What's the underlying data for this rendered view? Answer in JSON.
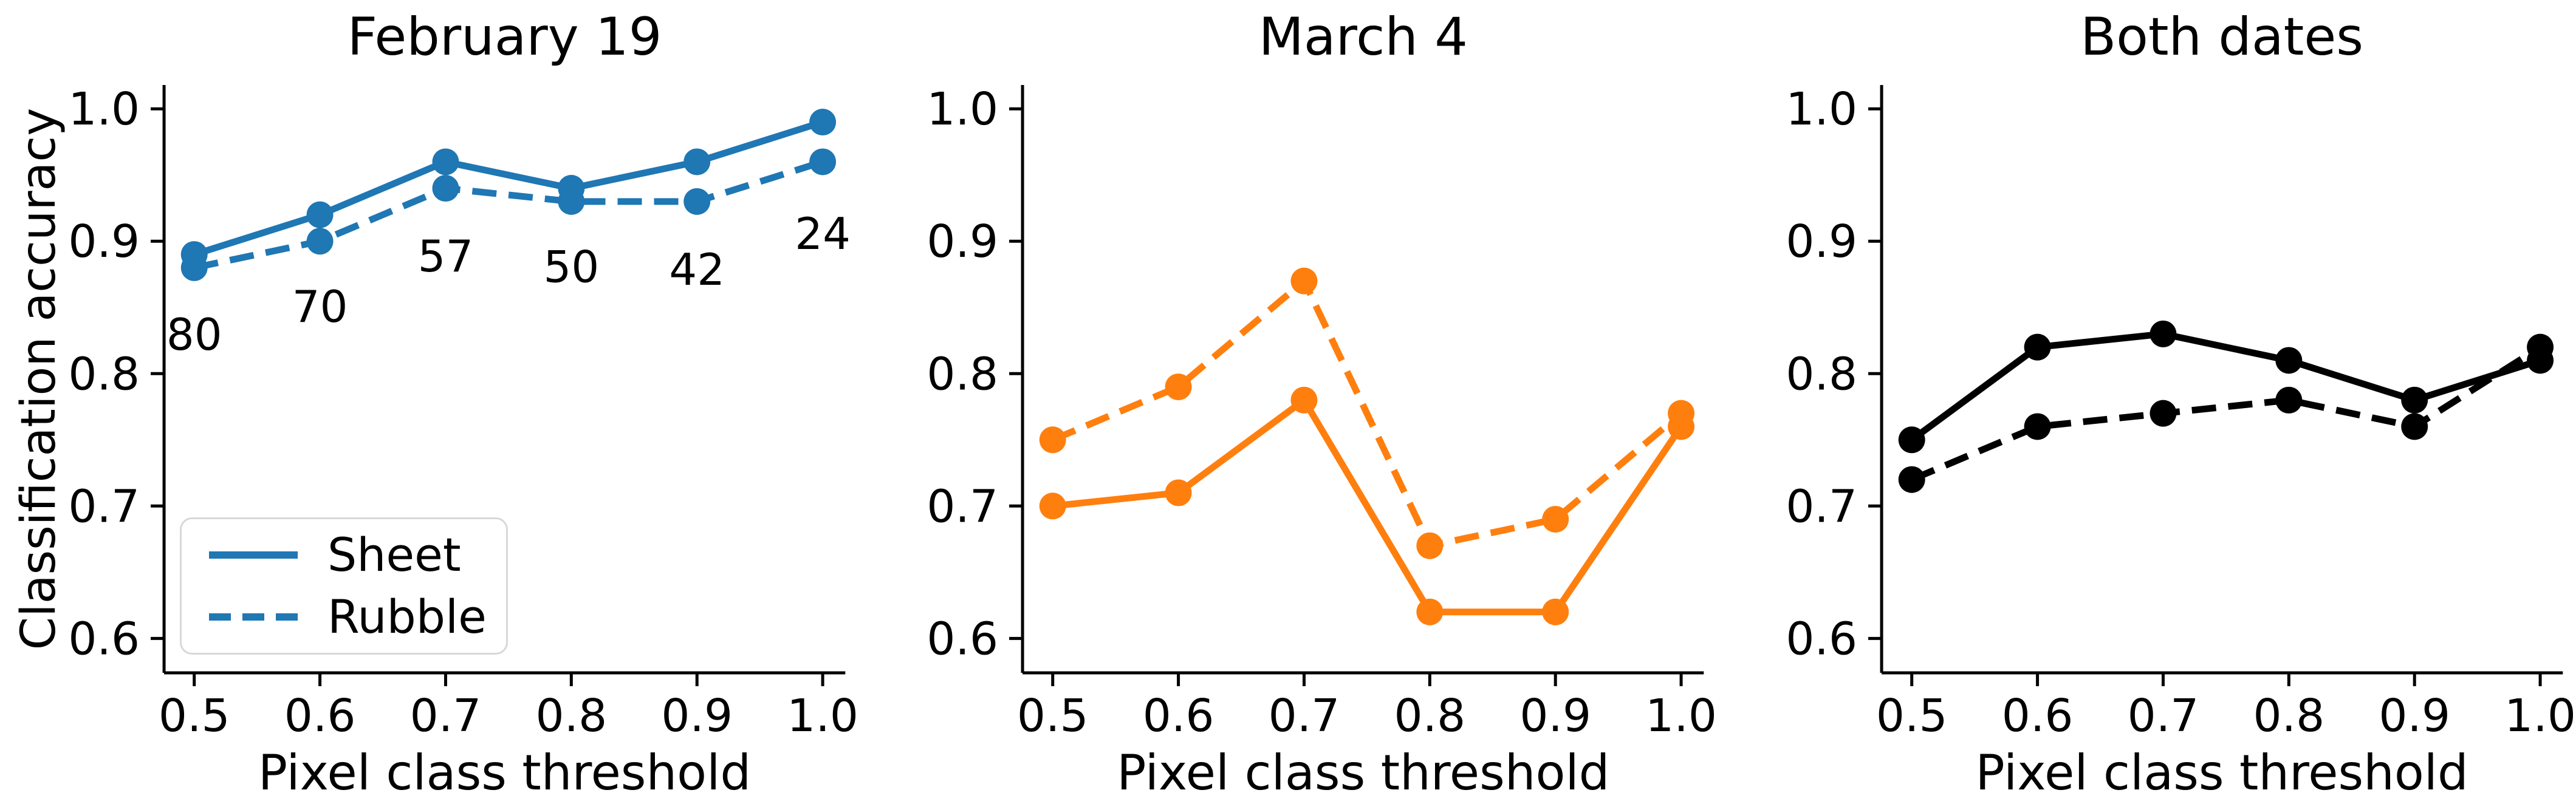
{
  "figure": {
    "ylabel": "Classification accuracy",
    "xlabel": "Pixel class threshold",
    "background_color": "#ffffff",
    "axis_color": "#000000"
  },
  "legend": {
    "position": "lower-left-of-first-panel",
    "items": [
      {
        "label": "Sheet",
        "style": "solid"
      },
      {
        "label": "Rubble",
        "style": "dashed"
      }
    ]
  },
  "chart_data": [
    {
      "type": "line",
      "title": "February 19",
      "xlabel": "Pixel class threshold",
      "ylabel": "Classification accuracy",
      "color": "#1f77b4",
      "grid": false,
      "x": [
        0.5,
        0.6,
        0.7,
        0.8,
        0.9,
        1.0
      ],
      "x_ticklabels": [
        "0.5",
        "0.6",
        "0.7",
        "0.8",
        "0.9",
        "1.0"
      ],
      "y_ticks": [
        0.6,
        0.7,
        0.8,
        0.9,
        1.0
      ],
      "y_ticklabels": [
        "0.6",
        "0.7",
        "0.8",
        "0.9",
        "1.0"
      ],
      "xlim": [
        0.476,
        1.018
      ],
      "ylim": [
        0.574,
        1.018
      ],
      "series": [
        {
          "name": "Sheet",
          "style": "solid",
          "values": [
            0.89,
            0.92,
            0.96,
            0.94,
            0.96,
            0.99
          ]
        },
        {
          "name": "Rubble",
          "style": "dashed",
          "values": [
            0.88,
            0.9,
            0.94,
            0.93,
            0.93,
            0.96
          ]
        }
      ],
      "annotations": [
        {
          "text": "80",
          "x": 0.5,
          "y": 0.83
        },
        {
          "text": "70",
          "x": 0.6,
          "y": 0.851
        },
        {
          "text": "57",
          "x": 0.7,
          "y": 0.889
        },
        {
          "text": "50",
          "x": 0.8,
          "y": 0.881
        },
        {
          "text": "42",
          "x": 0.9,
          "y": 0.879
        },
        {
          "text": "24",
          "x": 1.0,
          "y": 0.906
        }
      ]
    },
    {
      "type": "line",
      "title": "March 4",
      "xlabel": "Pixel class threshold",
      "color": "#ff7f0e",
      "grid": false,
      "x": [
        0.5,
        0.6,
        0.7,
        0.8,
        0.9,
        1.0
      ],
      "x_ticklabels": [
        "0.5",
        "0.6",
        "0.7",
        "0.8",
        "0.9",
        "1.0"
      ],
      "y_ticks": [
        0.6,
        0.7,
        0.8,
        0.9,
        1.0
      ],
      "y_ticklabels": [
        "0.6",
        "0.7",
        "0.8",
        "0.9",
        "1.0"
      ],
      "xlim": [
        0.476,
        1.018
      ],
      "ylim": [
        0.574,
        1.018
      ],
      "series": [
        {
          "name": "Sheet",
          "style": "solid",
          "values": [
            0.7,
            0.71,
            0.78,
            0.62,
            0.62,
            0.76
          ]
        },
        {
          "name": "Rubble",
          "style": "dashed",
          "values": [
            0.75,
            0.79,
            0.87,
            0.67,
            0.69,
            0.77
          ]
        }
      ],
      "annotations": []
    },
    {
      "type": "line",
      "title": "Both dates",
      "xlabel": "Pixel class threshold",
      "color": "#000000",
      "grid": false,
      "x": [
        0.5,
        0.6,
        0.7,
        0.8,
        0.9,
        1.0
      ],
      "x_ticklabels": [
        "0.5",
        "0.6",
        "0.7",
        "0.8",
        "0.9",
        "1.0"
      ],
      "y_ticks": [
        0.6,
        0.7,
        0.8,
        0.9,
        1.0
      ],
      "y_ticklabels": [
        "0.6",
        "0.7",
        "0.8",
        "0.9",
        "1.0"
      ],
      "xlim": [
        0.476,
        1.018
      ],
      "ylim": [
        0.574,
        1.018
      ],
      "series": [
        {
          "name": "Sheet",
          "style": "solid",
          "values": [
            0.75,
            0.82,
            0.83,
            0.81,
            0.78,
            0.81
          ]
        },
        {
          "name": "Rubble",
          "style": "dashed",
          "values": [
            0.72,
            0.76,
            0.77,
            0.78,
            0.76,
            0.82
          ]
        }
      ],
      "annotations": []
    }
  ]
}
